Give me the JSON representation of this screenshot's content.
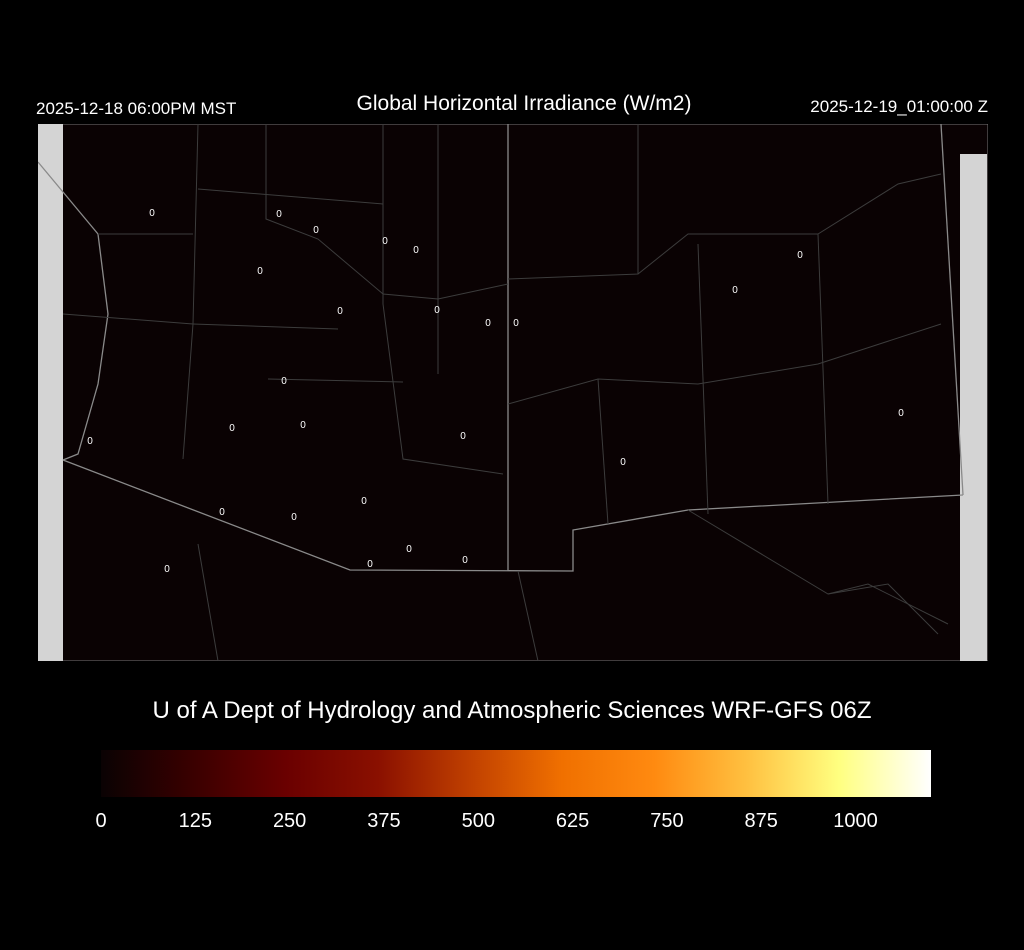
{
  "header": {
    "local_time": "2025-12-18 06:00PM MST",
    "title": "Global Horizontal Irradiance (W/m2)",
    "utc_time": "2025-12-19_01:00:00 Z"
  },
  "map": {
    "background_color": "#0a0203",
    "border_color": "#8a8a8a",
    "station_values": [
      "0",
      "0",
      "0",
      "0",
      "0",
      "0",
      "0",
      "0",
      "0",
      "0",
      "0",
      "0",
      "0",
      "0",
      "0",
      "0",
      "0",
      "0",
      "0",
      "0",
      "0",
      "0",
      "0",
      "0",
      "0",
      "0"
    ]
  },
  "footer": {
    "credit": "U of A Dept of Hydrology and Atmospheric Sciences WRF-GFS 06Z"
  },
  "colorbar": {
    "min": 0,
    "max": 1100,
    "ticks": [
      "0",
      "125",
      "250",
      "375",
      "500",
      "625",
      "750",
      "875",
      "1000"
    ],
    "colors": [
      "#0a0203",
      "#3a0000",
      "#6a0000",
      "#8a1000",
      "#c04000",
      "#f07000",
      "#ff8a10",
      "#ffc040",
      "#ffff80",
      "#ffffff"
    ]
  }
}
